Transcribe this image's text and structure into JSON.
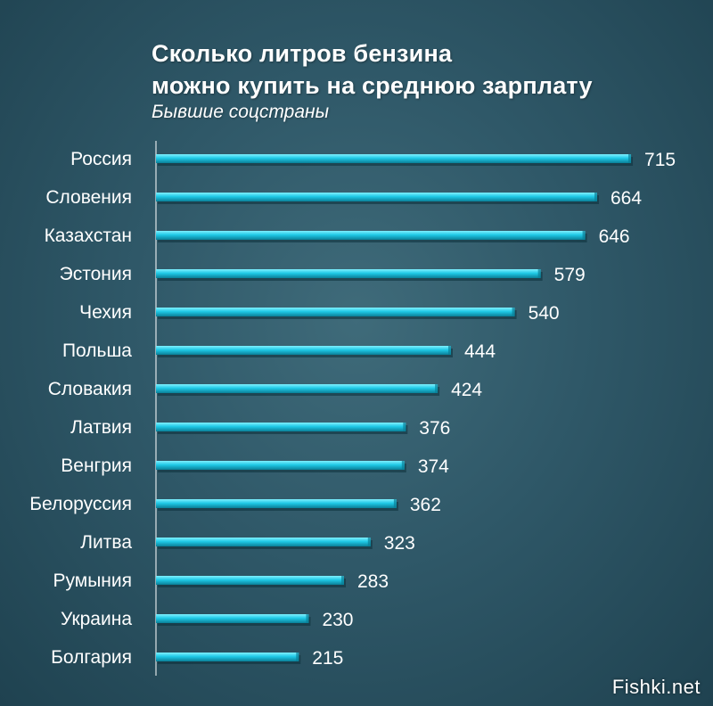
{
  "chart_data": {
    "type": "bar",
    "orientation": "horizontal",
    "title_line1": "Сколько литров бензина",
    "title_line2": "можно купить на среднюю зарплату",
    "subtitle": "Бывшие соцстраны",
    "categories": [
      "Россия",
      "Словения",
      "Казахстан",
      "Эстония",
      "Чехия",
      "Польша",
      "Словакия",
      "Латвия",
      "Венгрия",
      "Белоруссия",
      "Литва",
      "Румыния",
      "Украина",
      "Болгария"
    ],
    "values": [
      715,
      664,
      646,
      579,
      540,
      444,
      424,
      376,
      374,
      362,
      323,
      283,
      230,
      215
    ],
    "xlim": [
      0,
      750
    ],
    "grid": false,
    "legend": "none",
    "colors": {
      "bar_top": "#7ff0ff",
      "bar_mid": "#1fc9e6",
      "bar_bottom": "#0a7f97",
      "bar_shadow": "#0b2f3a",
      "axis": "#ffffff"
    }
  },
  "watermark": "Fishki.net"
}
